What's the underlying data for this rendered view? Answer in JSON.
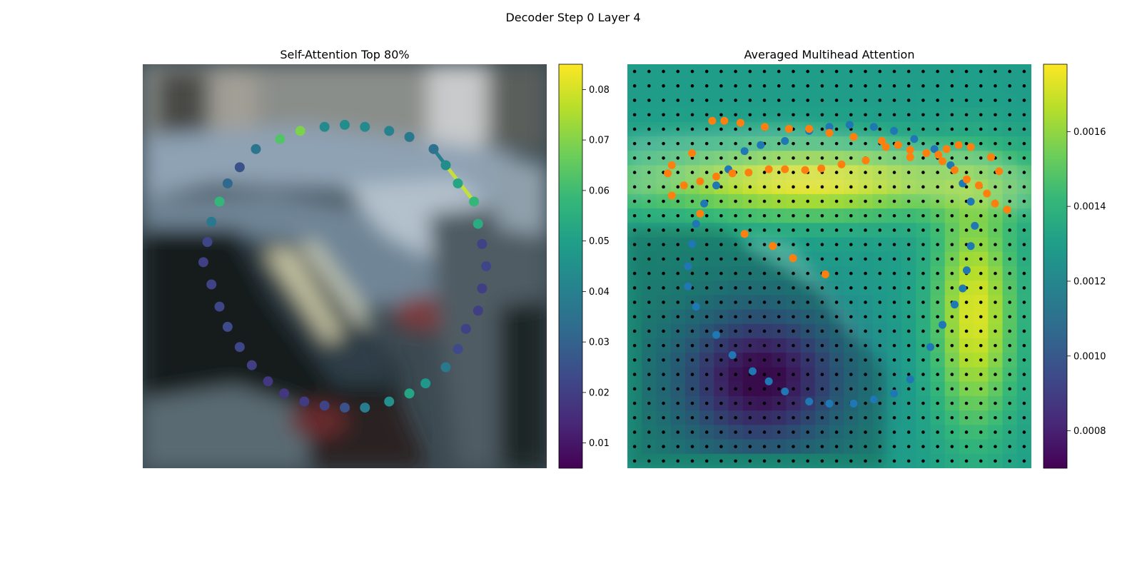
{
  "figure": {
    "suptitle": "Decoder Step 0 Layer 4"
  },
  "colors": {
    "viridis": [
      "#440154",
      "#482878",
      "#3e4989",
      "#31688e",
      "#26828e",
      "#1f9e89",
      "#35b779",
      "#6ece58",
      "#b5de2b",
      "#fde725"
    ],
    "point_blue": "#1f77b4",
    "point_orange": "#ff7f0e",
    "grid_dot": "#000000"
  },
  "chart_data": [
    {
      "type": "scatter",
      "title": "Self-Attention Top 80%",
      "background": "blurred photo of parked cars",
      "colormap": "viridis",
      "points_x": [
        0.5,
        0.55,
        0.61,
        0.66,
        0.72,
        0.75,
        0.78,
        0.82,
        0.83,
        0.84,
        0.85,
        0.84,
        0.83,
        0.8,
        0.78,
        0.75,
        0.7,
        0.66,
        0.61,
        0.55,
        0.5,
        0.45,
        0.4,
        0.35,
        0.31,
        0.27,
        0.24,
        0.21,
        0.19,
        0.17,
        0.15,
        0.16,
        0.17,
        0.19,
        0.21,
        0.24,
        0.28,
        0.34,
        0.39,
        0.45
      ],
      "points_y": [
        0.15,
        0.155,
        0.165,
        0.18,
        0.21,
        0.25,
        0.295,
        0.34,
        0.395,
        0.445,
        0.5,
        0.555,
        0.61,
        0.655,
        0.705,
        0.75,
        0.79,
        0.815,
        0.835,
        0.85,
        0.85,
        0.845,
        0.835,
        0.815,
        0.785,
        0.745,
        0.7,
        0.65,
        0.6,
        0.545,
        0.49,
        0.44,
        0.39,
        0.34,
        0.295,
        0.255,
        0.21,
        0.185,
        0.165,
        0.155
      ],
      "points_value": [
        0.044,
        0.043,
        0.041,
        0.037,
        0.035,
        0.044,
        0.052,
        0.058,
        0.054,
        0.021,
        0.022,
        0.02,
        0.02,
        0.021,
        0.023,
        0.037,
        0.047,
        0.052,
        0.045,
        0.038,
        0.025,
        0.021,
        0.019,
        0.018,
        0.018,
        0.02,
        0.022,
        0.023,
        0.022,
        0.021,
        0.02,
        0.022,
        0.037,
        0.058,
        0.032,
        0.025,
        0.036,
        0.063,
        0.069,
        0.043
      ],
      "highlight_segment": {
        "from_index": 4,
        "to_index": 7
      },
      "colorbar": {
        "min": 0.005,
        "max": 0.085,
        "ticks": [
          0.01,
          0.02,
          0.03,
          0.04,
          0.05,
          0.06,
          0.07,
          0.08
        ]
      }
    },
    {
      "type": "heatmap",
      "title": "Averaged Multihead Attention",
      "colormap": "viridis",
      "grid_size": 28,
      "cmin": 0.0007,
      "cmax": 0.00178,
      "heat_note": "values smoothly varying: high (~0.0016) along top band and right region, low (~0.0008) in lower-left interior",
      "blue_points_x": [
        0.39,
        0.45,
        0.5,
        0.55,
        0.61,
        0.66,
        0.71,
        0.76,
        0.8,
        0.83,
        0.85,
        0.86,
        0.85,
        0.84,
        0.83,
        0.81,
        0.78,
        0.75,
        0.7,
        0.66,
        0.61,
        0.56,
        0.5,
        0.45,
        0.39,
        0.35,
        0.31,
        0.26,
        0.22,
        0.17,
        0.15,
        0.15,
        0.16,
        0.17,
        0.19,
        0.22,
        0.25,
        0.29,
        0.33
      ],
      "blue_points_y": [
        0.19,
        0.165,
        0.155,
        0.15,
        0.155,
        0.165,
        0.185,
        0.21,
        0.25,
        0.295,
        0.34,
        0.4,
        0.45,
        0.51,
        0.555,
        0.595,
        0.645,
        0.7,
        0.78,
        0.815,
        0.83,
        0.84,
        0.84,
        0.835,
        0.81,
        0.785,
        0.76,
        0.72,
        0.67,
        0.6,
        0.55,
        0.5,
        0.445,
        0.395,
        0.345,
        0.3,
        0.26,
        0.215,
        0.2
      ],
      "orange_points_x": [
        0.11,
        0.14,
        0.18,
        0.22,
        0.26,
        0.3,
        0.35,
        0.39,
        0.44,
        0.48,
        0.53,
        0.59,
        0.64,
        0.67,
        0.7,
        0.74,
        0.78,
        0.81,
        0.84,
        0.87,
        0.89,
        0.91,
        0.94,
        0.92,
        0.9,
        0.85,
        0.82,
        0.79,
        0.77,
        0.74,
        0.7,
        0.63,
        0.56,
        0.5,
        0.45,
        0.4,
        0.34,
        0.28,
        0.24,
        0.21,
        0.16,
        0.11,
        0.1,
        0.18,
        0.29,
        0.36,
        0.41,
        0.49
      ],
      "orange_points_y": [
        0.325,
        0.3,
        0.29,
        0.278,
        0.27,
        0.268,
        0.26,
        0.26,
        0.262,
        0.258,
        0.248,
        0.238,
        0.205,
        0.2,
        0.212,
        0.22,
        0.24,
        0.262,
        0.285,
        0.3,
        0.32,
        0.345,
        0.36,
        0.265,
        0.23,
        0.205,
        0.2,
        0.21,
        0.224,
        0.22,
        0.23,
        0.19,
        0.18,
        0.17,
        0.16,
        0.16,
        0.155,
        0.145,
        0.14,
        0.14,
        0.22,
        0.25,
        0.27,
        0.37,
        0.42,
        0.45,
        0.48,
        0.52
      ],
      "colorbar": {
        "min": 0.0007,
        "max": 0.00178,
        "ticks": [
          0.0008,
          0.001,
          0.0012,
          0.0014,
          0.0016
        ],
        "tick_labels": [
          "0.0008",
          "0.0010",
          "0.0012",
          "0.0014",
          "0.0016"
        ]
      }
    }
  ]
}
